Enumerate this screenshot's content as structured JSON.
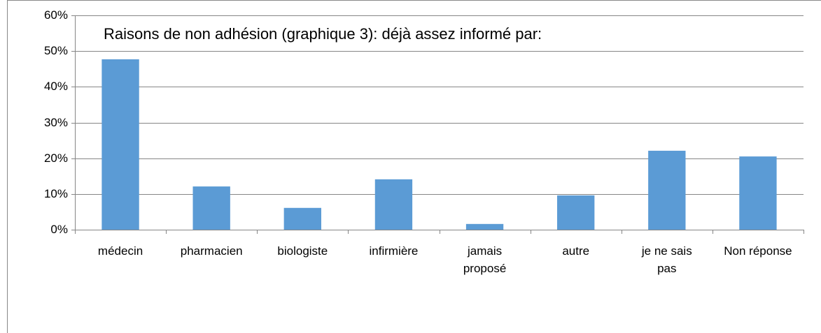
{
  "chart_data": {
    "type": "bar",
    "title": "Raisons de non adhésion (graphique 3): déjà assez informé par:",
    "categories": [
      "médecin",
      "pharmacien",
      "biologiste",
      "infirmière",
      "jamais proposé",
      "autre",
      "je ne sais pas",
      "Non réponse"
    ],
    "values": [
      47.7,
      12.1,
      6.1,
      14.1,
      1.6,
      9.6,
      22.1,
      20.5
    ],
    "color": "#5b9bd5",
    "ylim": [
      0,
      60
    ],
    "yticks": [
      {
        "value": 0,
        "label": "0%"
      },
      {
        "value": 10,
        "label": "10%"
      },
      {
        "value": 20,
        "label": "20%"
      },
      {
        "value": 30,
        "label": "30%"
      },
      {
        "value": 40,
        "label": "40%"
      },
      {
        "value": 50,
        "label": "50%"
      },
      {
        "value": 60,
        "label": "60%"
      }
    ],
    "grid": true
  }
}
